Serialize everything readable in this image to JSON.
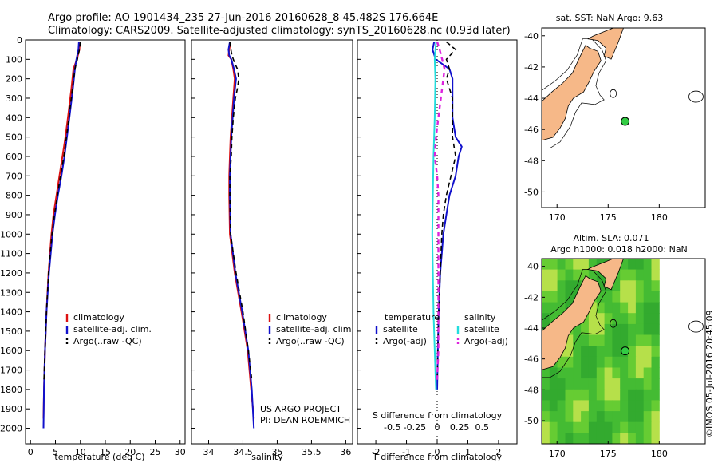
{
  "title": {
    "line1": "Argo profile: AO 1901434_235 27-Jun-2016 20160628_8 45.482S 176.664E",
    "line2": "Climatology: CARS2009. Satellite-adjusted climatology: synTS_20160628.nc (0.93d later)"
  },
  "side_label": "©IMOS 05-Jul-2016 20:45:09",
  "project_label": {
    "line1": "US ARGO PROJECT",
    "line2": "PI: DEAN ROEMMICH"
  },
  "colors": {
    "climatology": "#dd1111",
    "satellite": "#1111cc",
    "argo": "#000000",
    "sal_satellite": "#22dddd",
    "sal_argo": "#dd22dd",
    "land": "#f6b888",
    "sla_field": "#55cc33"
  },
  "chart_data": [
    {
      "id": "temperature",
      "type": "line",
      "xlabel": "temperature (deg C)",
      "ylabel": "",
      "xlim": [
        -1,
        31
      ],
      "ylim": [
        2080,
        0
      ],
      "xticks": [
        "0",
        "5",
        "10",
        "15",
        "20",
        "25",
        "30"
      ],
      "yticks": [
        "0",
        "100",
        "200",
        "300",
        "400",
        "500",
        "600",
        "700",
        "800",
        "900",
        "1000",
        "1100",
        "1200",
        "1300",
        "1400",
        "1500",
        "1600",
        "1700",
        "1800",
        "1900",
        "2000"
      ],
      "legend": [
        "climatology",
        "satellite-adj. clim.",
        "Argo(..raw -QC)"
      ],
      "series": [
        {
          "name": "climatology",
          "depth": [
            10,
            50,
            100,
            150,
            250,
            400,
            500,
            600,
            700,
            800,
            900,
            1000,
            1200,
            1400,
            1600,
            1800,
            1950
          ],
          "values": [
            9.9,
            9.8,
            9.3,
            8.6,
            8.2,
            7.5,
            7.0,
            6.4,
            5.8,
            5.2,
            4.6,
            4.2,
            3.6,
            3.2,
            2.9,
            2.7,
            2.6
          ]
        },
        {
          "name": "satellite-adj. clim.",
          "depth": [
            10,
            50,
            100,
            150,
            250,
            400,
            500,
            600,
            700,
            800,
            900,
            1000,
            1200,
            1400,
            1600,
            1800,
            2000
          ],
          "values": [
            9.7,
            9.6,
            9.2,
            8.9,
            8.5,
            7.8,
            7.3,
            6.8,
            6.2,
            5.5,
            4.9,
            4.4,
            3.7,
            3.2,
            2.9,
            2.7,
            2.6
          ]
        },
        {
          "name": "Argo(..raw -QC)",
          "depth": [
            10,
            50,
            100,
            150,
            250,
            400,
            500,
            600,
            700,
            800,
            900,
            1000,
            1200,
            1400,
            1600,
            1750
          ],
          "values": [
            10.0,
            9.8,
            9.4,
            8.9,
            8.4,
            7.7,
            7.2,
            6.7,
            6.0,
            5.4,
            4.8,
            4.3,
            3.6,
            3.2,
            2.9,
            2.7
          ]
        }
      ]
    },
    {
      "id": "salinity",
      "type": "line",
      "xlabel": "salinity",
      "ylabel": "",
      "xlim": [
        33.75,
        36.1
      ],
      "ylim": [
        2080,
        0
      ],
      "xticks": [
        "34",
        "34.5",
        "35",
        "35.5",
        "36"
      ],
      "legend": [
        "climatology",
        "satellite-adj. clim.",
        "Argo(..raw -QC)"
      ],
      "series": [
        {
          "name": "climatology",
          "depth": [
            10,
            50,
            80,
            100,
            150,
            200,
            300,
            400,
            500,
            600,
            700,
            800,
            1000,
            1200,
            1400,
            1600,
            1800,
            1950
          ],
          "values": [
            34.32,
            34.3,
            34.29,
            34.33,
            34.36,
            34.38,
            34.36,
            34.34,
            34.32,
            34.31,
            34.3,
            34.3,
            34.31,
            34.38,
            34.48,
            34.57,
            34.62,
            34.66
          ]
        },
        {
          "name": "satellite-adj. clim.",
          "depth": [
            10,
            50,
            80,
            100,
            150,
            200,
            300,
            400,
            500,
            600,
            700,
            800,
            1000,
            1200,
            1400,
            1600,
            1800,
            2000
          ],
          "values": [
            34.31,
            34.29,
            34.3,
            34.33,
            34.37,
            34.4,
            34.37,
            34.35,
            34.33,
            34.32,
            34.31,
            34.31,
            34.32,
            34.39,
            34.49,
            34.58,
            34.63,
            34.66
          ]
        },
        {
          "name": "Argo(..raw -QC)",
          "depth": [
            10,
            40,
            80,
            120,
            150,
            200,
            250,
            300,
            400,
            500,
            600,
            700,
            800,
            1000,
            1200,
            1400,
            1600,
            1750
          ],
          "values": [
            34.31,
            34.32,
            34.34,
            34.38,
            34.42,
            34.44,
            34.42,
            34.39,
            34.36,
            34.34,
            34.33,
            34.31,
            34.31,
            34.32,
            34.4,
            34.5,
            34.58,
            34.63
          ]
        }
      ]
    },
    {
      "id": "differences",
      "type": "line",
      "xlabel": "T difference from climatology",
      "ylabel": "",
      "xlim": [
        -2.6,
        2.6
      ],
      "ylim": [
        2080,
        0
      ],
      "xticks": [
        "-2",
        "-1",
        "0",
        "1",
        "2"
      ],
      "top_axis_label": "S difference from climatology",
      "top_ticks": [
        "-0.5",
        "-0.25",
        "0",
        "0.25",
        "0.5"
      ],
      "legend_headers": [
        "temperature",
        "salinity"
      ],
      "legend_left": [
        "satellite",
        "Argo(-adj)"
      ],
      "legend_right": [
        "satellite",
        "Argo(-adj)"
      ],
      "series": [
        {
          "name": "temperature satellite",
          "depth": [
            10,
            50,
            100,
            150,
            200,
            300,
            400,
            500,
            550,
            600,
            700,
            800,
            900,
            1000,
            1100,
            1200,
            1400,
            1600,
            1800
          ],
          "values": [
            -0.1,
            -0.15,
            -0.05,
            0.4,
            0.5,
            0.5,
            0.5,
            0.6,
            0.8,
            0.7,
            0.6,
            0.4,
            0.3,
            0.2,
            0.15,
            0.1,
            0.05,
            0.02,
            0.0
          ]
        },
        {
          "name": "temperature Argo(-adj)",
          "depth": [
            10,
            50,
            100,
            150,
            200,
            300,
            400,
            500,
            600,
            700,
            800,
            900,
            1000,
            1200,
            1400,
            1600,
            1750
          ],
          "values": [
            0.3,
            0.6,
            0.3,
            0.4,
            0.3,
            0.5,
            0.5,
            0.5,
            0.6,
            0.45,
            0.3,
            0.2,
            0.15,
            0.1,
            0.05,
            0.02,
            0.0
          ]
        },
        {
          "name": "salinity satellite",
          "depth": [
            10,
            100,
            200,
            400,
            600,
            800,
            1000,
            1200,
            1400,
            1600,
            1800
          ],
          "values": [
            -0.01,
            -0.02,
            -0.015,
            -0.02,
            -0.03,
            -0.035,
            -0.04,
            -0.035,
            -0.03,
            -0.02,
            -0.01
          ]
        },
        {
          "name": "salinity Argo(-adj)",
          "depth": [
            10,
            50,
            100,
            150,
            200,
            300,
            400,
            500,
            600,
            700,
            800,
            1000,
            1200,
            1400,
            1600,
            1750
          ],
          "values": [
            0.0,
            0.02,
            0.04,
            0.06,
            0.05,
            0.03,
            0.01,
            -0.01,
            -0.02,
            0.0,
            0.01,
            0.01,
            0.01,
            0.01,
            0.01,
            0.0
          ]
        }
      ]
    },
    {
      "id": "sst_map",
      "type": "map",
      "title": "sat. SST: NaN  Argo: 9.63",
      "xlim": [
        168.5,
        184.5
      ],
      "ylim": [
        -51,
        -39.5
      ],
      "xticks": [
        "170",
        "175",
        "180"
      ],
      "yticks": [
        "-40",
        "-42",
        "-44",
        "-46",
        "-48",
        "-50"
      ],
      "argo_position": [
        176.664,
        -45.482
      ]
    },
    {
      "id": "sla_map",
      "type": "map",
      "title_line1": "Altim. SLA: 0.071",
      "title_line2": "Argo h1000: 0.018  h2000: NaN",
      "xlim": [
        168.5,
        184.5
      ],
      "ylim": [
        -51.5,
        -39.5
      ],
      "xticks": [
        "170",
        "175",
        "180"
      ],
      "yticks": [
        "-40",
        "-42",
        "-44",
        "-46",
        "-48",
        "-50"
      ],
      "argo_position": [
        176.664,
        -45.482
      ]
    }
  ]
}
